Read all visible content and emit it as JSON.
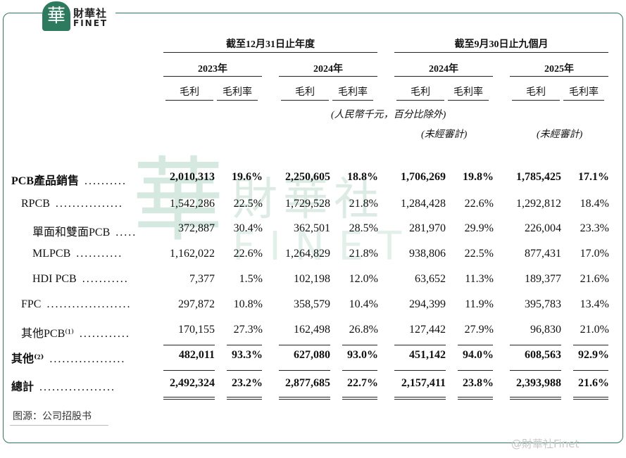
{
  "brand": {
    "logo_glyph": "華",
    "logo_cn": "財華社",
    "logo_en": "FINET",
    "watermark_cn": "財華社",
    "watermark_en": "FINET",
    "color": "#2d7a5f"
  },
  "header": {
    "group1": "截至12月31日止年度",
    "group2": "截至9月30日止九個月",
    "years": [
      "2023年",
      "2024年",
      "2024年",
      "2025年"
    ],
    "sub": [
      "毛利",
      "毛利率"
    ],
    "unit_note": "(人民幣千元，百分比除外)",
    "unaudited": [
      "(未經審計)",
      "(未經審計)"
    ]
  },
  "rows": [
    {
      "label": "PCB產品銷售",
      "dots": "..........",
      "bold": true,
      "values": [
        "2,010,313",
        "19.6%",
        "2,250,605",
        "18.8%",
        "1,706,269",
        "19.8%",
        "1,785,425",
        "17.1%"
      ]
    },
    {
      "label": "RPCB",
      "dots": "................",
      "bold": false,
      "values": [
        "1,542,286",
        "22.5%",
        "1,729,528",
        "21.8%",
        "1,284,428",
        "22.6%",
        "1,292,812",
        "18.4%"
      ]
    },
    {
      "label": "單面和雙面PCB",
      "dots": ".....",
      "bold": false,
      "values": [
        "372,887",
        "30.4%",
        "362,501",
        "28.5%",
        "281,970",
        "29.9%",
        "226,004",
        "23.3%"
      ]
    },
    {
      "label": "MLPCB",
      "dots": "...........",
      "bold": false,
      "values": [
        "1,162,022",
        "22.6%",
        "1,264,829",
        "21.8%",
        "938,806",
        "22.5%",
        "877,431",
        "17.0%"
      ]
    },
    {
      "label": "HDI PCB",
      "dots": "...........",
      "bold": false,
      "values": [
        "7,377",
        "1.5%",
        "102,198",
        "12.0%",
        "63,652",
        "11.3%",
        "189,377",
        "21.6%"
      ]
    },
    {
      "label": "FPC",
      "dots": "....................",
      "bold": false,
      "values": [
        "297,872",
        "10.8%",
        "358,579",
        "10.4%",
        "294,399",
        "11.9%",
        "395,783",
        "13.4%"
      ]
    },
    {
      "label": "其他PCB⁽¹⁾",
      "dots": "............",
      "bold": false,
      "values": [
        "170,155",
        "27.3%",
        "162,498",
        "26.8%",
        "127,442",
        "27.9%",
        "96,830",
        "21.0%"
      ]
    },
    {
      "label": "其他⁽²⁾",
      "dots": "..................",
      "bold": true,
      "values": [
        "482,011",
        "93.3%",
        "627,080",
        "93.0%",
        "451,142",
        "94.0%",
        "608,563",
        "92.9%"
      ]
    },
    {
      "label": "總計",
      "dots": "..................",
      "bold": true,
      "values": [
        "2,492,324",
        "23.2%",
        "2,877,685",
        "22.7%",
        "2,157,411",
        "23.8%",
        "2,393,988",
        "21.6%"
      ]
    }
  ],
  "source": "图源：公司招股书",
  "weibo": "@財華社Finet"
}
